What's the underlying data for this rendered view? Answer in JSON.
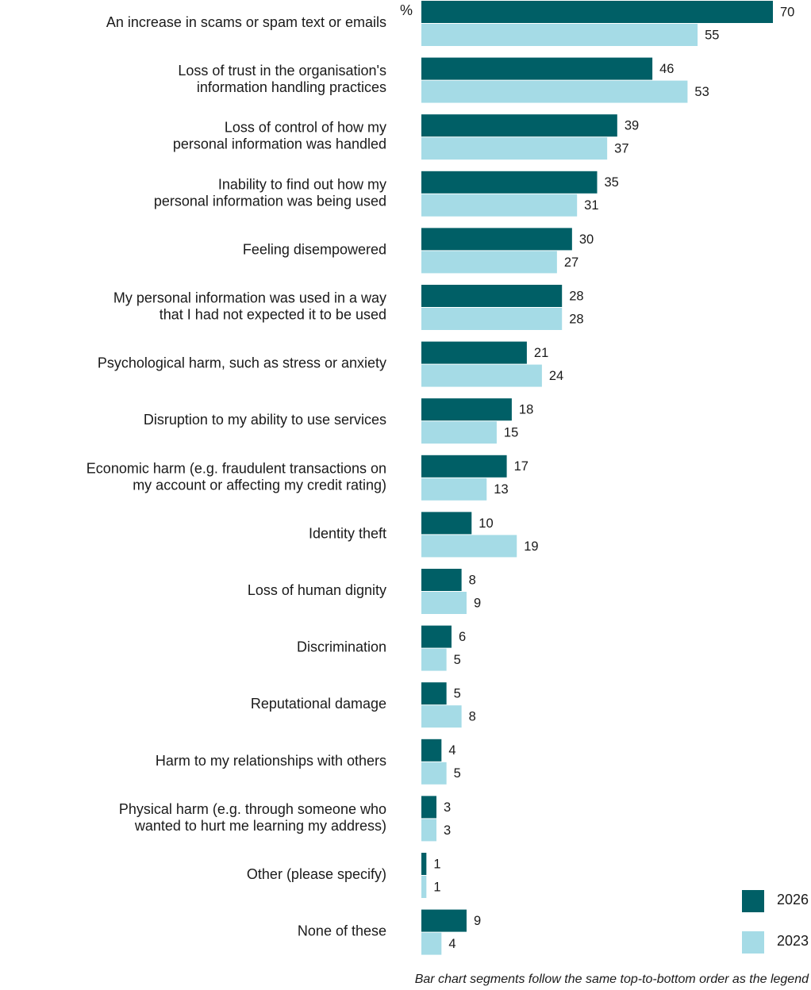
{
  "chart_data": {
    "type": "bar",
    "orientation": "horizontal",
    "unit_label": "%",
    "categories": [
      [
        "An increase in scams or spam text or emails"
      ],
      [
        "Loss of trust in the organisation's",
        "information handling practices"
      ],
      [
        "Loss of control of how my",
        "personal information was handled"
      ],
      [
        "Inability to find out how my",
        "personal information was being used"
      ],
      [
        "Feeling disempowered"
      ],
      [
        "My personal information was used in a way",
        "that I had not expected it to be used"
      ],
      [
        "Psychological harm, such as stress or anxiety"
      ],
      [
        "Disruption to my ability to use services"
      ],
      [
        "Economic harm (e.g. fraudulent transactions on",
        "my account or affecting my credit rating)"
      ],
      [
        "Identity theft"
      ],
      [
        "Loss of human dignity"
      ],
      [
        "Discrimination"
      ],
      [
        "Reputational damage"
      ],
      [
        "Harm to my relationships with others"
      ],
      [
        "Physical harm (e.g. through someone who",
        "wanted to hurt me learning my address)"
      ],
      [
        "Other (please specify)"
      ],
      [
        "None of these"
      ]
    ],
    "series": [
      {
        "name": "2026",
        "color": "#005f66",
        "values": [
          70,
          46,
          39,
          35,
          30,
          28,
          21,
          18,
          17,
          10,
          8,
          6,
          5,
          4,
          3,
          1,
          9
        ]
      },
      {
        "name": "2023",
        "color": "#a5dbe6",
        "values": [
          55,
          53,
          37,
          31,
          27,
          28,
          24,
          15,
          13,
          19,
          9,
          5,
          8,
          5,
          3,
          1,
          4
        ]
      }
    ],
    "xlim": [
      0,
      70
    ],
    "legend": "bottom-right",
    "footnote": "Bar chart segments follow the same top-to-bottom order as the legend"
  }
}
